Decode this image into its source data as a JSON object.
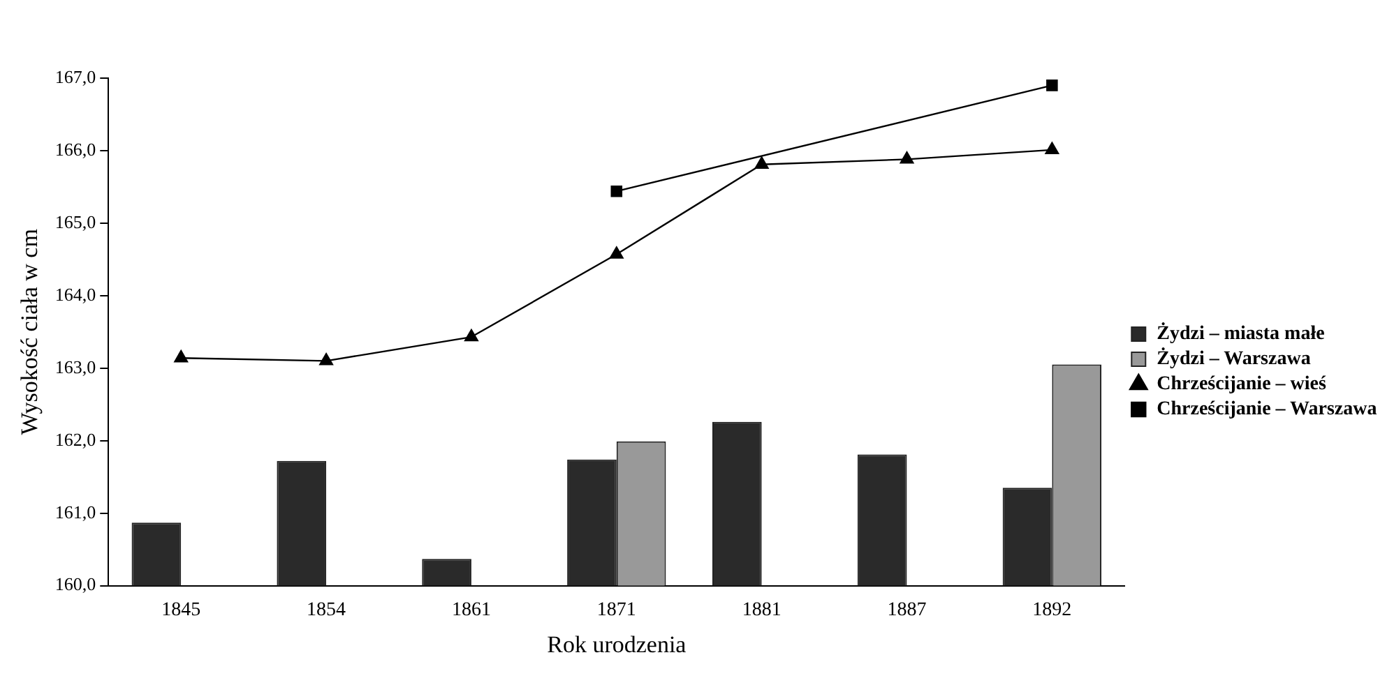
{
  "chart_data": {
    "type": "bar",
    "xlabel": "Rok urodzenia",
    "ylabel": "Wysokość ciała w cm",
    "categories": [
      "1845",
      "1854",
      "1861",
      "1871",
      "1881",
      "1887",
      "1892"
    ],
    "series": [
      {
        "name": "Żydzi – miasta małe",
        "color": "#2a2a2a",
        "values": [
          160.87,
          161.72,
          160.37,
          161.74,
          162.26,
          161.81,
          161.35
        ]
      },
      {
        "name": "Żydzi – Warszawa",
        "color": "#999999",
        "values": [
          null,
          null,
          null,
          161.99,
          null,
          null,
          163.05
        ]
      },
      {
        "name": "Chrześcijanie – wieś",
        "type": "line",
        "color": "#000000",
        "marker": "triangle",
        "values": [
          163.14,
          163.1,
          163.43,
          164.57,
          165.81,
          165.88,
          166.01
        ]
      },
      {
        "name": "Chrześcijanie – Warszawa",
        "type": "line",
        "color": "#000000",
        "marker": "square",
        "values": [
          null,
          null,
          null,
          165.44,
          null,
          null,
          166.9
        ]
      }
    ],
    "ylim": [
      160,
      167
    ],
    "yticks": [
      {
        "value": 160,
        "label": "160,0"
      },
      {
        "value": 161,
        "label": "161,0"
      },
      {
        "value": 162,
        "label": "162,0"
      },
      {
        "value": 163,
        "label": "163,0"
      },
      {
        "value": 164,
        "label": "164,0"
      },
      {
        "value": 165,
        "label": "165,0"
      },
      {
        "value": 166,
        "label": "166,0"
      },
      {
        "value": 167,
        "label": "167,0"
      }
    ],
    "grid": false,
    "legend": "right"
  }
}
